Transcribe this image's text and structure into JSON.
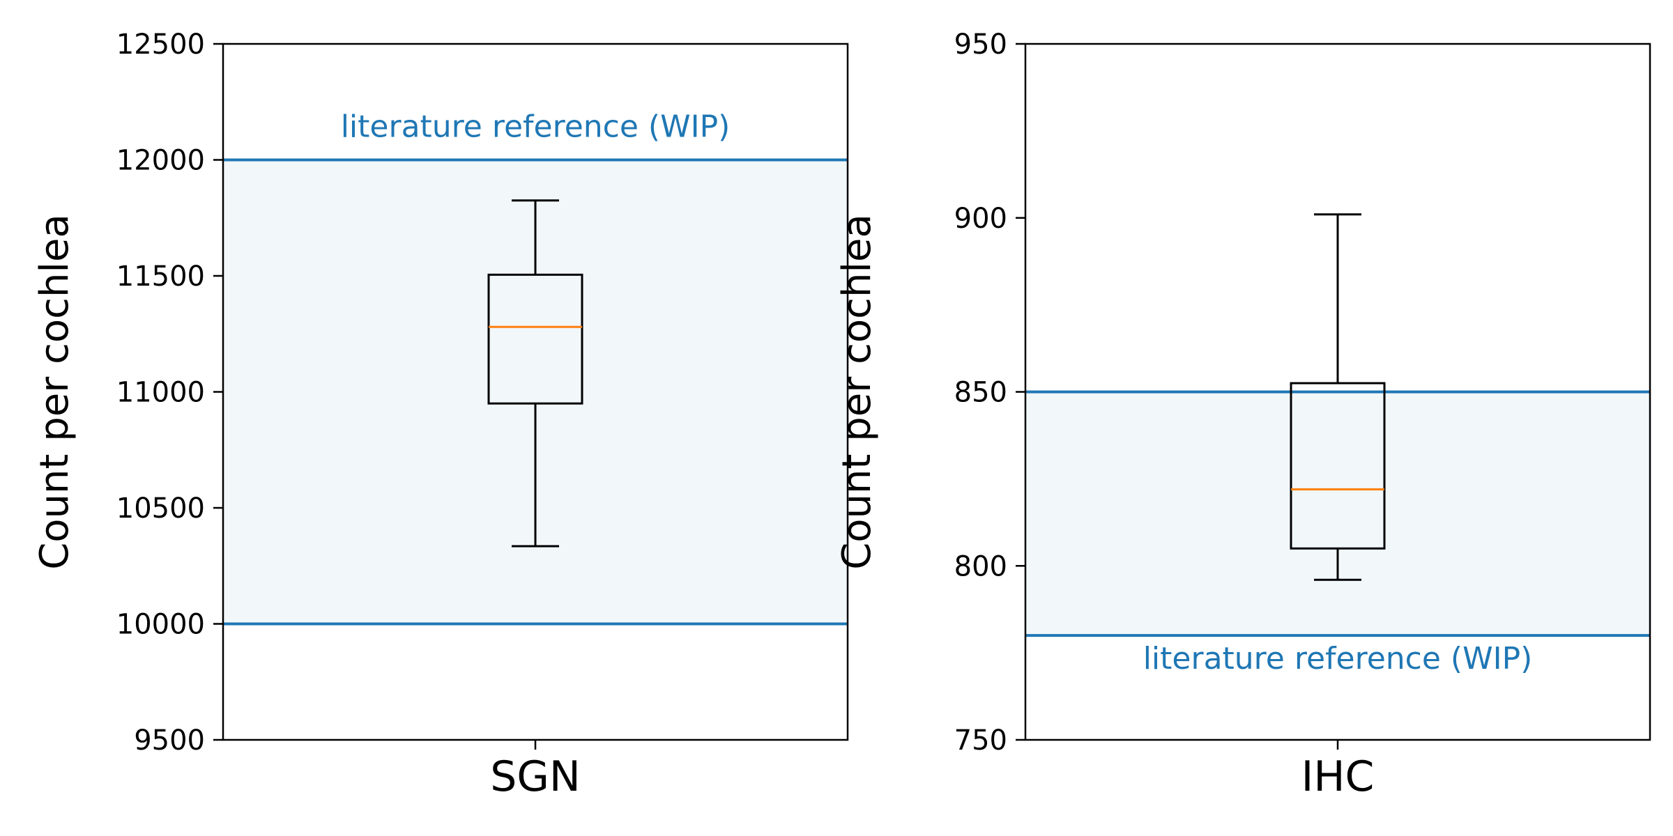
{
  "colors": {
    "reference": "#1f77b4",
    "reference_band": "#f2f7fa",
    "median": "#ff7f0e",
    "box": "#000000"
  },
  "chart_data": [
    {
      "type": "box",
      "categories": [
        "SGN"
      ],
      "ylabel": "Count per cochlea",
      "ylim": [
        9500,
        12500
      ],
      "yticks": [
        "9500",
        "10000",
        "10500",
        "11000",
        "11500",
        "12000",
        "12500"
      ],
      "box": {
        "whisker_low": 10335,
        "q1": 10950,
        "median": 11280,
        "q3": 11505,
        "whisker_high": 11825
      },
      "reference": {
        "label": "literature reference (WIP)",
        "low": 10000,
        "high": 12000,
        "label_position": "above-high"
      }
    },
    {
      "type": "box",
      "categories": [
        "IHC"
      ],
      "ylabel": "Count per cochlea",
      "ylim": [
        750,
        950
      ],
      "yticks": [
        "750",
        "800",
        "850",
        "900",
        "950"
      ],
      "box": {
        "whisker_low": 796,
        "q1": 805,
        "median": 822,
        "q3": 852.5,
        "whisker_high": 901
      },
      "reference": {
        "label": "literature reference (WIP)",
        "low": 780,
        "high": 850,
        "label_position": "below-low"
      }
    }
  ]
}
